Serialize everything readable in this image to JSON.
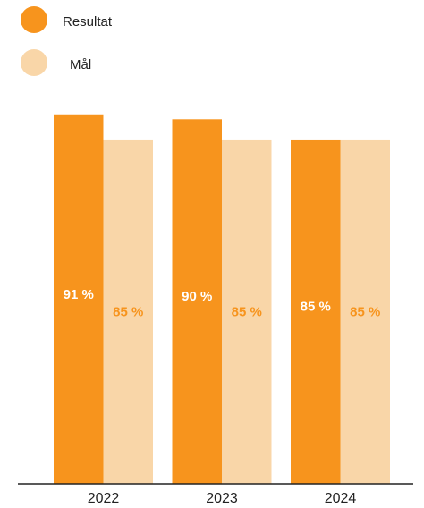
{
  "chart_data": {
    "type": "bar",
    "categories": [
      "2022",
      "2023",
      "2024"
    ],
    "series": [
      {
        "name": "Resultat",
        "color": "#f7941d",
        "values": [
          91,
          90,
          85
        ],
        "value_labels": [
          "91 %",
          "90 %",
          "85 %"
        ]
      },
      {
        "name": "Mål",
        "color": "#f9d6a8",
        "values": [
          85,
          85,
          85
        ],
        "value_labels": [
          "85 %",
          "85 %",
          "85 %"
        ]
      }
    ],
    "ylim": [
      0,
      100
    ]
  }
}
